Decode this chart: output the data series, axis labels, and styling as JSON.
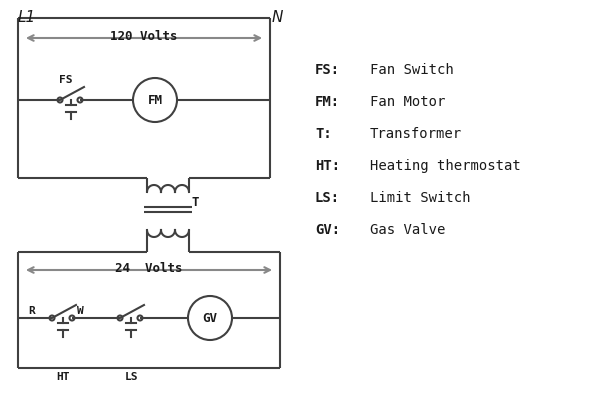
{
  "bg_color": "#ffffff",
  "line_color": "#404040",
  "arrow_color": "#888888",
  "text_color": "#1a1a1a",
  "legend_items": [
    [
      "FS:",
      "Fan Switch"
    ],
    [
      "FM:",
      "Fan Motor"
    ],
    [
      "T:",
      "Transformer"
    ],
    [
      "HT:",
      "Heating thermostat"
    ],
    [
      "LS:",
      "Limit Switch"
    ],
    [
      "GV:",
      "Gas Valve"
    ]
  ],
  "L1_label": "L1",
  "N_label": "N",
  "volts120_label": "120 Volts",
  "volts24_label": "24  Volts",
  "T_label": "T",
  "FS_label": "FS",
  "FM_label": "FM",
  "R_label": "R",
  "W_label": "W",
  "HT_label": "HT",
  "LS_label": "LS",
  "GV_label": "GV"
}
